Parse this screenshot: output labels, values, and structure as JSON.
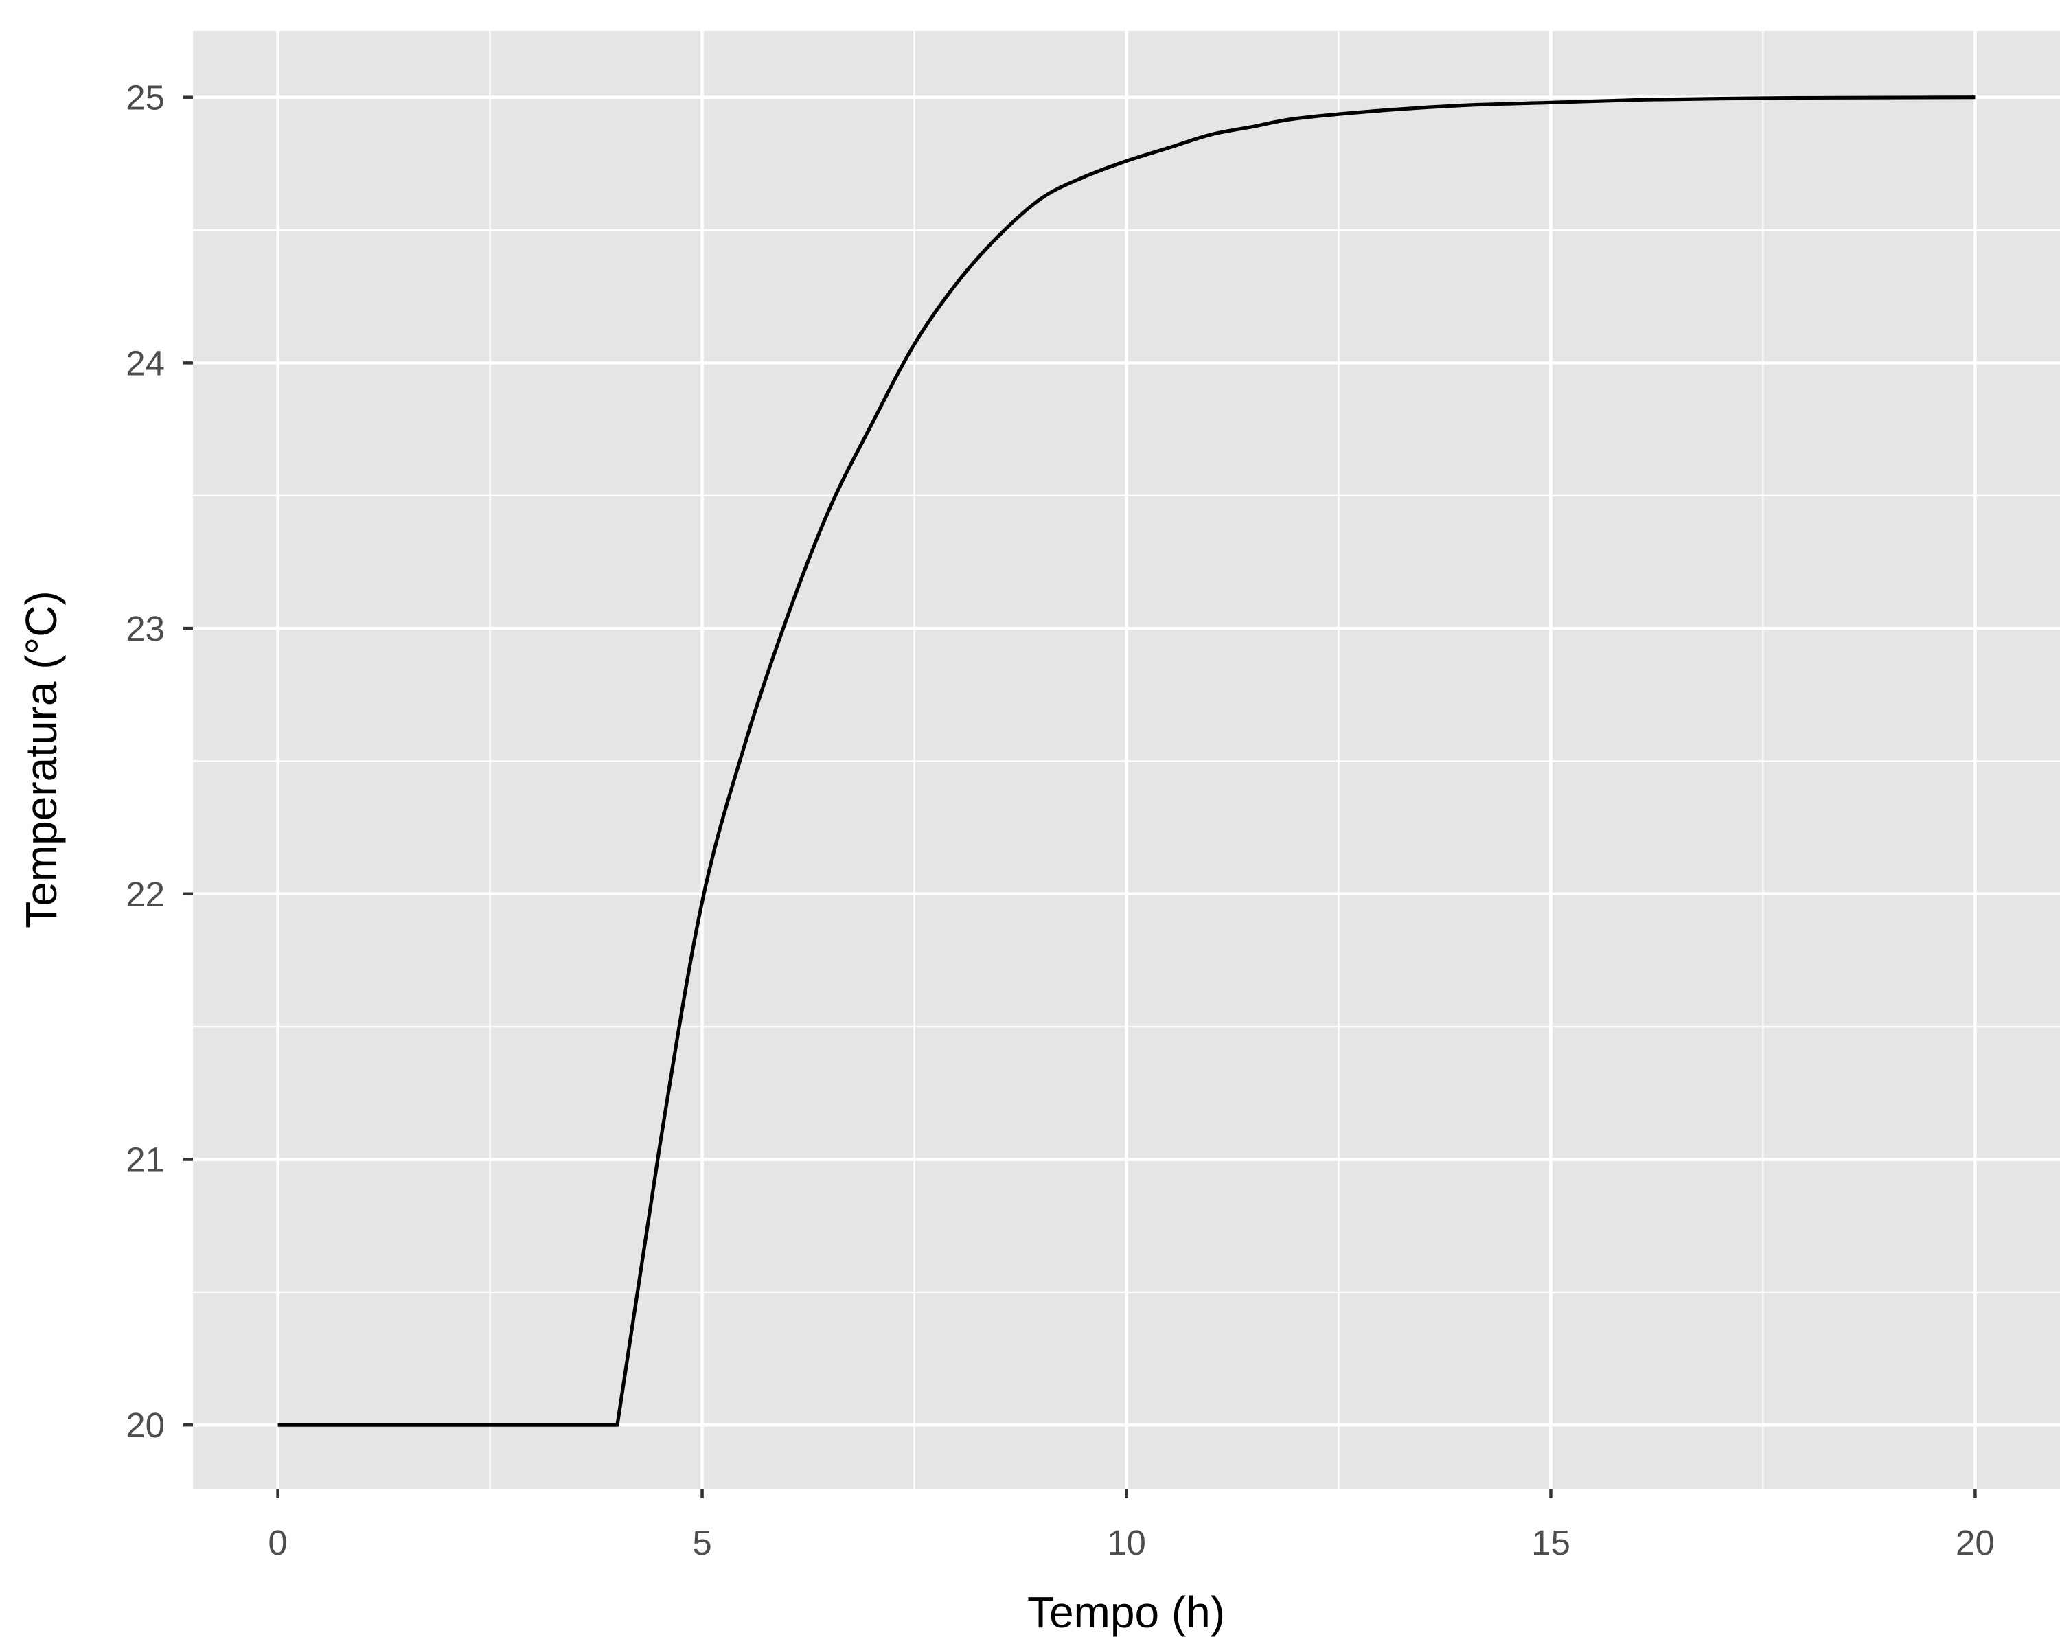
{
  "chart_data": {
    "type": "line",
    "title": "",
    "xlabel": "Tempo (h)",
    "ylabel": "Temperatura (°C)",
    "xlim": [
      -1,
      21
    ],
    "ylim": [
      19.76,
      25.25
    ],
    "x_ticks": [
      0,
      5,
      10,
      15,
      20
    ],
    "x_tick_labels": [
      "0",
      "5",
      "10",
      "15",
      "20"
    ],
    "y_ticks": [
      20,
      21,
      22,
      23,
      24,
      25
    ],
    "y_tick_labels": [
      "20",
      "21",
      "22",
      "23",
      "24",
      "25"
    ],
    "grid": true,
    "legend": "none",
    "colors": {
      "panel": "#e5e5e5",
      "grid": "#ffffff",
      "line": "#000000",
      "tick_text": "#4d4d4d",
      "axis_title": "#000000"
    },
    "series": [
      {
        "x": [
          0,
          1,
          2,
          3,
          4,
          4.5,
          5,
          5.5,
          6,
          6.5,
          7,
          7.5,
          8,
          8.5,
          9,
          9.5,
          10,
          10.5,
          11,
          11.5,
          12,
          13,
          14,
          15,
          16,
          17,
          18,
          19,
          20
        ],
        "y": [
          20.0,
          20.0,
          20.0,
          20.0,
          20.0,
          21.05,
          21.97,
          22.56,
          23.04,
          23.45,
          23.77,
          24.07,
          24.3,
          24.48,
          24.62,
          24.7,
          24.76,
          24.81,
          24.86,
          24.89,
          24.92,
          24.95,
          24.97,
          24.98,
          24.99,
          24.995,
          24.998,
          24.999,
          25.0
        ]
      }
    ]
  }
}
